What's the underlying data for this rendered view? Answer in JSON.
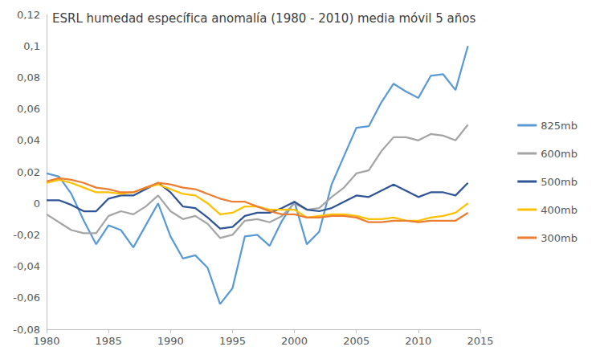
{
  "chart_data": {
    "type": "line",
    "title": "ESRL humedad específica anomalía (1980 - 2010) media móvil 5 años",
    "x": [
      1980,
      1981,
      1982,
      1983,
      1984,
      1985,
      1986,
      1987,
      1988,
      1989,
      1990,
      1991,
      1992,
      1993,
      1994,
      1995,
      1996,
      1997,
      1998,
      1999,
      2000,
      2001,
      2002,
      2003,
      2004,
      2005,
      2006,
      2007,
      2008,
      2009,
      2010,
      2011,
      2012,
      2013,
      2014
    ],
    "series": [
      {
        "name": "825mb",
        "color": "#5b9bd5",
        "values": [
          0.019,
          0.017,
          0.006,
          -0.011,
          -0.026,
          -0.014,
          -0.017,
          -0.028,
          -0.014,
          0.0,
          -0.021,
          -0.035,
          -0.033,
          -0.041,
          -0.064,
          -0.054,
          -0.021,
          -0.02,
          -0.027,
          -0.011,
          0.001,
          -0.026,
          -0.018,
          0.012,
          0.03,
          0.048,
          0.049,
          0.064,
          0.076,
          0.071,
          0.067,
          0.081,
          0.082,
          0.072,
          0.1
        ]
      },
      {
        "name": "600mb",
        "color": "#a5a5a5",
        "values": [
          -0.007,
          -0.012,
          -0.017,
          -0.019,
          -0.019,
          -0.008,
          -0.005,
          -0.007,
          -0.002,
          0.005,
          -0.005,
          -0.01,
          -0.008,
          -0.013,
          -0.022,
          -0.02,
          -0.011,
          -0.01,
          -0.012,
          -0.008,
          0.0,
          -0.004,
          -0.003,
          0.004,
          0.01,
          0.019,
          0.021,
          0.033,
          0.042,
          0.042,
          0.04,
          0.044,
          0.043,
          0.04,
          0.05
        ]
      },
      {
        "name": "500mb",
        "color": "#2f5597",
        "values": [
          0.002,
          0.002,
          -0.001,
          -0.005,
          -0.005,
          0.003,
          0.005,
          0.005,
          0.009,
          0.013,
          0.007,
          -0.002,
          -0.003,
          -0.009,
          -0.016,
          -0.015,
          -0.008,
          -0.006,
          -0.006,
          -0.003,
          0.001,
          -0.004,
          -0.005,
          -0.003,
          0.001,
          0.005,
          0.004,
          0.008,
          0.012,
          0.008,
          0.004,
          0.007,
          0.007,
          0.005,
          0.013
        ]
      },
      {
        "name": "400mb",
        "color": "#ffc000",
        "values": [
          0.013,
          0.015,
          0.013,
          0.01,
          0.007,
          0.007,
          0.006,
          0.007,
          0.01,
          0.012,
          0.009,
          0.006,
          0.005,
          0.0,
          -0.007,
          -0.006,
          -0.002,
          -0.002,
          -0.004,
          -0.004,
          -0.004,
          -0.009,
          -0.008,
          -0.007,
          -0.007,
          -0.008,
          -0.01,
          -0.01,
          -0.009,
          -0.011,
          -0.011,
          -0.009,
          -0.008,
          -0.006,
          0.0
        ]
      },
      {
        "name": "300mb",
        "color": "#ed7d31",
        "values": [
          0.014,
          0.016,
          0.015,
          0.013,
          0.01,
          0.009,
          0.007,
          0.007,
          0.01,
          0.013,
          0.012,
          0.01,
          0.009,
          0.006,
          0.003,
          0.001,
          0.001,
          -0.002,
          -0.005,
          -0.007,
          -0.007,
          -0.009,
          -0.009,
          -0.008,
          -0.008,
          -0.009,
          -0.012,
          -0.012,
          -0.011,
          -0.011,
          -0.012,
          -0.011,
          -0.011,
          -0.011,
          -0.006
        ]
      }
    ],
    "xlim": [
      1980,
      2015
    ],
    "xticks": [
      1980,
      1985,
      1990,
      1995,
      2000,
      2005,
      2010,
      2015
    ],
    "ylim": [
      -0.08,
      0.12
    ],
    "yticks": [
      {
        "value": -0.08,
        "label": "-0,08"
      },
      {
        "value": -0.06,
        "label": "-0,06"
      },
      {
        "value": -0.04,
        "label": "-0,04"
      },
      {
        "value": -0.02,
        "label": "-0,02"
      },
      0,
      {
        "value": 0.02,
        "label": "0,02"
      },
      {
        "value": 0.04,
        "label": "0,04"
      },
      {
        "value": 0.06,
        "label": "0,06"
      },
      {
        "value": 0.08,
        "label": "0,08"
      },
      {
        "value": 0.1,
        "label": "0,1"
      },
      {
        "value": 0.12,
        "label": "0,12"
      }
    ],
    "grid": false,
    "legend": "right"
  }
}
